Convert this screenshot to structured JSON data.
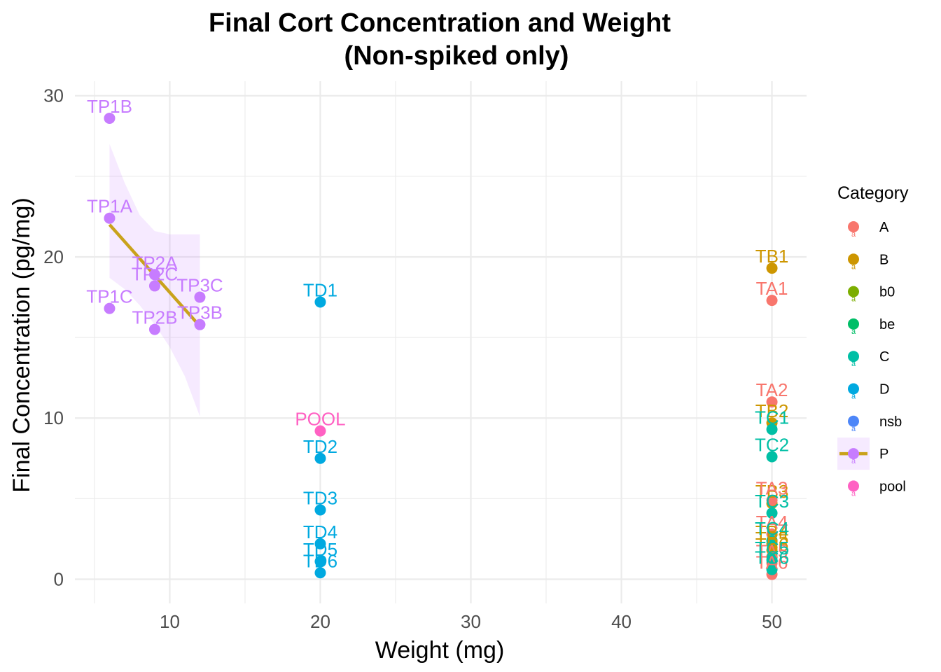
{
  "chart_data": {
    "type": "scatter",
    "title": "Final Cort Concentration and Weight",
    "subtitle": "(Non-spiked only)",
    "xlabel": "Weight (mg)",
    "ylabel": "Final Concentration (pg/mg)",
    "xlim": [
      3.7,
      52.3
    ],
    "ylim": [
      -1.5,
      30.9
    ],
    "x_ticks": [
      10,
      20,
      30,
      40,
      50
    ],
    "x_tick_labels": [
      "10",
      "20",
      "30",
      "40",
      "50"
    ],
    "y_ticks": [
      0,
      10,
      20,
      30
    ],
    "y_tick_labels": [
      "0",
      "10",
      "20",
      "30"
    ],
    "grid": true,
    "legend": {
      "title": "Category",
      "placement": "right",
      "entries": [
        {
          "name": "A",
          "color": "#F8766D"
        },
        {
          "name": "B",
          "color": "#CD9600"
        },
        {
          "name": "b0",
          "color": "#7CAE00"
        },
        {
          "name": "be",
          "color": "#00BE67"
        },
        {
          "name": "C",
          "color": "#00BFA5"
        },
        {
          "name": "D",
          "color": "#00A9E0"
        },
        {
          "name": "nsb",
          "color": "#4D86F8"
        },
        {
          "name": "P",
          "color": "#C77CFF",
          "has_line": true
        },
        {
          "name": "pool",
          "color": "#FF61C3"
        }
      ]
    },
    "series": [
      {
        "name": "P",
        "color": "#C77CFF",
        "points": [
          {
            "label": "TP1B",
            "x": 6,
            "y": 28.6
          },
          {
            "label": "TP1A",
            "x": 6,
            "y": 22.4
          },
          {
            "label": "TP1C",
            "x": 6,
            "y": 16.8
          },
          {
            "label": "TP2A",
            "x": 9,
            "y": 18.9
          },
          {
            "label": "TP2C",
            "x": 9,
            "y": 18.2
          },
          {
            "label": "TP2B",
            "x": 9,
            "y": 15.5
          },
          {
            "label": "TP3C",
            "x": 12,
            "y": 17.5
          },
          {
            "label": "TP3B",
            "x": 12,
            "y": 15.8
          }
        ]
      },
      {
        "name": "D",
        "color": "#00A9E0",
        "points": [
          {
            "label": "TD1",
            "x": 20,
            "y": 17.2
          },
          {
            "label": "TD2",
            "x": 20,
            "y": 7.5
          },
          {
            "label": "TD3",
            "x": 20,
            "y": 4.3
          },
          {
            "label": "TD4",
            "x": 20,
            "y": 2.2
          },
          {
            "label": "TD5",
            "x": 20,
            "y": 1.1
          },
          {
            "label": "TD6",
            "x": 20,
            "y": 0.4
          }
        ]
      },
      {
        "name": "pool",
        "color": "#FF61C3",
        "points": [
          {
            "label": "POOL",
            "x": 20,
            "y": 9.2
          }
        ]
      },
      {
        "name": "B",
        "color": "#CD9600",
        "points": [
          {
            "label": "TB1",
            "x": 50,
            "y": 19.3
          },
          {
            "label": "TB2",
            "x": 50,
            "y": 9.7
          },
          {
            "label": "TB3",
            "x": 50,
            "y": 4.7
          },
          {
            "label": "TB4",
            "x": 50,
            "y": 2.2
          },
          {
            "label": "TB5",
            "x": 50,
            "y": 1.8
          },
          {
            "label": "TB6",
            "x": 50,
            "y": 1.4
          }
        ]
      },
      {
        "name": "A",
        "color": "#F8766D",
        "points": [
          {
            "label": "TA1",
            "x": 50,
            "y": 17.3
          },
          {
            "label": "TA2",
            "x": 50,
            "y": 11.0
          },
          {
            "label": "TA3",
            "x": 50,
            "y": 4.9
          },
          {
            "label": "TA4",
            "x": 50,
            "y": 2.8
          },
          {
            "label": "TA5",
            "x": 50,
            "y": 1.0
          },
          {
            "label": "TA6",
            "x": 50,
            "y": 0.3
          }
        ]
      },
      {
        "name": "C",
        "color": "#00BFA5",
        "points": [
          {
            "label": "TC1",
            "x": 50,
            "y": 9.3
          },
          {
            "label": "TC2",
            "x": 50,
            "y": 7.6
          },
          {
            "label": "TC3",
            "x": 50,
            "y": 4.1
          },
          {
            "label": "TC4",
            "x": 50,
            "y": 2.4
          },
          {
            "label": "TC5",
            "x": 50,
            "y": 1.2
          },
          {
            "label": "TC6",
            "x": 50,
            "y": 0.6
          }
        ]
      }
    ],
    "trend": {
      "series": "P",
      "color": "#C9A21B",
      "ribbon_color": "#C77CFF",
      "x": [
        6,
        12
      ],
      "y": [
        22.0,
        15.7
      ],
      "ribbon_upper": [
        [
          6,
          27.0
        ],
        [
          7,
          24.6
        ],
        [
          8,
          22.6
        ],
        [
          9,
          21.6
        ],
        [
          10,
          21.4
        ],
        [
          11,
          21.4
        ],
        [
          12,
          21.4
        ]
      ],
      "ribbon_lower": [
        [
          12,
          10.1
        ],
        [
          11,
          12.6
        ],
        [
          10,
          14.4
        ],
        [
          9,
          15.8
        ],
        [
          8,
          17.0
        ],
        [
          7,
          18.0
        ],
        [
          6,
          18.7
        ]
      ]
    }
  }
}
